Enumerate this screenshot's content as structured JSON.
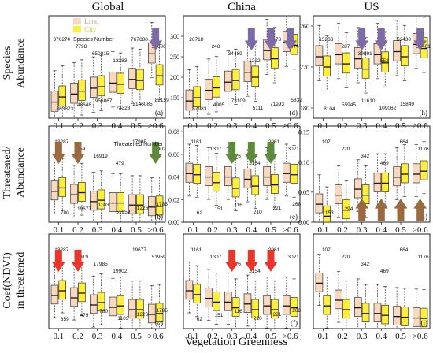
{
  "figure": {
    "column_titles": [
      "Global",
      "China",
      "US"
    ],
    "row_labels": [
      [
        "Species",
        "Abundance"
      ],
      [
        "Threatened/",
        "Abundance"
      ],
      [
        "Coef(NDVI)",
        "in threatened"
      ]
    ],
    "xlabel": "Vegetation Greenness",
    "legend": {
      "items": [
        "Land",
        "City"
      ],
      "note": "Species Number",
      "colors": [
        "#f9d8bf",
        "#ffef3a"
      ]
    },
    "threatened_note": "Threatened Number",
    "colors": {
      "land": "#f9d8bf",
      "city": "#ffef3a",
      "purple_arrow": "#7d6ba6",
      "brown_arrow": "#9a6a3e",
      "green_arrow": "#5d8a3a",
      "red_arrow": "#e8362a"
    }
  },
  "chart_data": [
    {
      "id": "a",
      "type": "boxplot",
      "panel_label": "(a)",
      "row": 0,
      "col": 0,
      "categories": [
        "0.1",
        "0.2",
        "0.3",
        "0.4",
        "0.5",
        ">0.6"
      ],
      "ylim": [
        0,
        700
      ],
      "yticks": [],
      "ticklabels": [],
      "land_median": [
        110,
        165,
        205,
        240,
        265,
        440
      ],
      "city_median": [
        145,
        185,
        215,
        232,
        258,
        290
      ],
      "annotations": [
        "376274",
        "7798",
        "650815",
        "13283",
        "767688",
        "31606",
        "863823",
        "48648",
        "956867",
        "73323",
        "2146085",
        "82159"
      ],
      "arrows": [
        {
          "color": "purple",
          "dir": "down",
          "cat": 5
        }
      ]
    },
    {
      "id": "d",
      "type": "boxplot",
      "panel_label": "(d)",
      "row": 0,
      "col": 1,
      "categories": [
        "0.1",
        "0.2",
        "0.3",
        "0.4",
        "0.5",
        ">0.6"
      ],
      "ylim": [
        100,
        350
      ],
      "yticks": [
        150,
        200,
        250,
        300
      ],
      "ticklabels": [
        "150",
        "200",
        "250",
        "300"
      ],
      "land_median": [
        142,
        168,
        188,
        212,
        265,
        285
      ],
      "city_median": [
        150,
        174,
        192,
        200,
        245,
        278
      ],
      "annotations": [
        "26718",
        "248",
        "34489",
        "1222",
        "50673",
        "2474",
        "57983",
        "4905",
        "73109",
        "5111",
        "71993",
        "5832"
      ],
      "arrows": [
        {
          "color": "purple",
          "dir": "down",
          "cat": 3
        },
        {
          "color": "purple",
          "dir": "down",
          "cat": 4
        },
        {
          "color": "purple",
          "dir": "down",
          "cat": 5
        }
      ]
    },
    {
      "id": "h",
      "type": "boxplot",
      "panel_label": "(h)",
      "row": 0,
      "col": 2,
      "categories": [
        "0.1",
        "0.2",
        "0.3",
        "0.4",
        "0.5",
        ">0.6"
      ],
      "ylim": [
        170,
        270
      ],
      "yticks": [
        180,
        220,
        260
      ],
      "ticklabels": [
        "180",
        "220",
        "260"
      ],
      "land_median": [
        230,
        232,
        228,
        232,
        235,
        242
      ],
      "city_median": [
        220,
        223,
        218,
        224,
        230,
        238
      ],
      "annotations": [
        "15283",
        "287",
        "39991",
        "552",
        "52430",
        "52461",
        "8104",
        "55945",
        "11610",
        "109062",
        "15849"
      ],
      "arrows": [
        {
          "color": "purple",
          "dir": "down",
          "cat": 2
        },
        {
          "color": "purple",
          "dir": "down",
          "cat": 3
        },
        {
          "color": "purple",
          "dir": "down",
          "cat": 5
        }
      ]
    },
    {
      "id": "b",
      "type": "boxplot",
      "panel_label": "(b)",
      "row": 1,
      "col": 0,
      "categories": [
        "0.1",
        "0.2",
        "0.3",
        "0.4",
        "0.5",
        ">0.6"
      ],
      "ylim": [
        0,
        0.14
      ],
      "yticks": [],
      "ticklabels": [],
      "land_median": [
        0.045,
        0.04,
        0.03,
        0.028,
        0.025,
        0.022
      ],
      "city_median": [
        0.05,
        0.043,
        0.032,
        0.028,
        0.025,
        0.023
      ],
      "annotations": [
        "13287",
        "359",
        "16919",
        "479",
        "17985",
        "19902",
        "780",
        "19677",
        "1103",
        "51959",
        "1226",
        "1785"
      ],
      "arrows": [
        {
          "color": "brown",
          "dir": "down",
          "cat": 0
        },
        {
          "color": "brown",
          "dir": "down",
          "cat": 1
        },
        {
          "color": "green",
          "dir": "down",
          "cat": 5
        }
      ]
    },
    {
      "id": "e",
      "type": "boxplot",
      "panel_label": "(e)",
      "row": 1,
      "col": 1,
      "categories": [
        "0.1",
        "0.2",
        "0.3",
        "0.4",
        "0.5",
        ">0.6"
      ],
      "ylim": [
        0,
        0.085
      ],
      "yticks": [
        0,
        0.02,
        0.04,
        0.06,
        0.08
      ],
      "ticklabels": [
        "0.00",
        "0.02",
        "0.04",
        "0.06",
        "0.08"
      ],
      "land_median": [
        0.043,
        0.04,
        0.04,
        0.038,
        0.04,
        0.043
      ],
      "city_median": [
        0.042,
        0.035,
        0.03,
        0.032,
        0.033,
        0.042
      ],
      "annotations": [
        "1161",
        "1307",
        "1876",
        "2154",
        "2961",
        "3021",
        "62",
        "151",
        "116",
        "210",
        "221",
        "268"
      ],
      "arrows": [
        {
          "color": "green",
          "dir": "down",
          "cat": 2
        },
        {
          "color": "green",
          "dir": "down",
          "cat": 3
        },
        {
          "color": "green",
          "dir": "down",
          "cat": 4
        }
      ]
    },
    {
      "id": "i",
      "type": "boxplot",
      "panel_label": "(i)",
      "row": 1,
      "col": 2,
      "categories": [
        "0.1",
        "0.2",
        "0.3",
        "0.4",
        "0.5",
        ">0.6"
      ],
      "ylim": [
        0,
        0.16
      ],
      "yticks": [
        0,
        0.05,
        0.1,
        0.15
      ],
      "ticklabels": [
        "0.00",
        "0.05",
        "0.10",
        "0.15"
      ],
      "land_median": [
        0.03,
        0.045,
        0.055,
        0.065,
        0.075,
        0.08
      ],
      "city_median": [
        0.01,
        0.02,
        0.045,
        0.065,
        0.08,
        0.085
      ],
      "annotations": [
        "107",
        "220",
        "342",
        "469",
        "664",
        "1176",
        "153",
        "294"
      ],
      "arrows": [
        {
          "color": "brown",
          "dir": "up",
          "cat": 2
        },
        {
          "color": "brown",
          "dir": "up",
          "cat": 3
        },
        {
          "color": "brown",
          "dir": "up",
          "cat": 4
        },
        {
          "color": "brown",
          "dir": "up",
          "cat": 5
        }
      ]
    },
    {
      "id": "c",
      "type": "boxplot",
      "panel_label": "(c)",
      "row": 2,
      "col": 0,
      "categories": [
        "0.1",
        "0.2",
        "0.3",
        "0.4",
        "0.5",
        ">0.6"
      ],
      "ylim": [
        0,
        0.2
      ],
      "yticks": [],
      "ticklabels": [],
      "land_median": [
        0.07,
        0.065,
        0.05,
        0.045,
        0.04,
        0.03
      ],
      "city_median": [
        0.08,
        0.075,
        0.055,
        0.048,
        0.04,
        0.032
      ],
      "annotations": [
        "13287",
        "16919",
        "17985",
        "19902",
        "19677",
        "51959",
        "359",
        "479",
        "780",
        "1103",
        "1226",
        "1785"
      ],
      "arrows": [
        {
          "color": "red",
          "dir": "down",
          "cat": 0
        },
        {
          "color": "red",
          "dir": "down",
          "cat": 1
        }
      ]
    },
    {
      "id": "f",
      "type": "boxplot",
      "panel_label": "(f)",
      "row": 2,
      "col": 1,
      "categories": [
        "0.1",
        "0.2",
        "0.3",
        "0.4",
        "0.5",
        ">0.6"
      ],
      "ylim": [
        0,
        0.25
      ],
      "yticks": [],
      "ticklabels": [],
      "land_median": [
        0.1,
        0.08,
        0.07,
        0.065,
        0.06,
        0.06
      ],
      "city_median": [
        0.09,
        0.07,
        0.055,
        0.05,
        0.05,
        0.055
      ],
      "annotations": [
        "1161",
        "1307",
        "1876",
        "2154",
        "2961",
        "3021",
        "62",
        "151",
        "116",
        "210",
        "221",
        "268"
      ],
      "arrows": [
        {
          "color": "red",
          "dir": "down",
          "cat": 2
        },
        {
          "color": "red",
          "dir": "down",
          "cat": 3
        },
        {
          "color": "red",
          "dir": "down",
          "cat": 4
        }
      ]
    },
    {
      "id": "j",
      "type": "boxplot",
      "panel_label": "(j)",
      "row": 2,
      "col": 2,
      "categories": [
        "0.1",
        "0.2",
        "0.3",
        "0.4",
        "0.5",
        ">0.6"
      ],
      "ylim": [
        0,
        0.25
      ],
      "yticks": [],
      "ticklabels": [],
      "land_median": [
        0.12,
        0.075,
        0.055,
        0.04,
        0.032,
        0.028
      ],
      "city_median": [
        0.06,
        0.05,
        0.04,
        0.035,
        0.03,
        0.027
      ],
      "annotations": [
        "107",
        "220",
        "342",
        "469",
        "664",
        "1176"
      ],
      "arrows": []
    }
  ]
}
